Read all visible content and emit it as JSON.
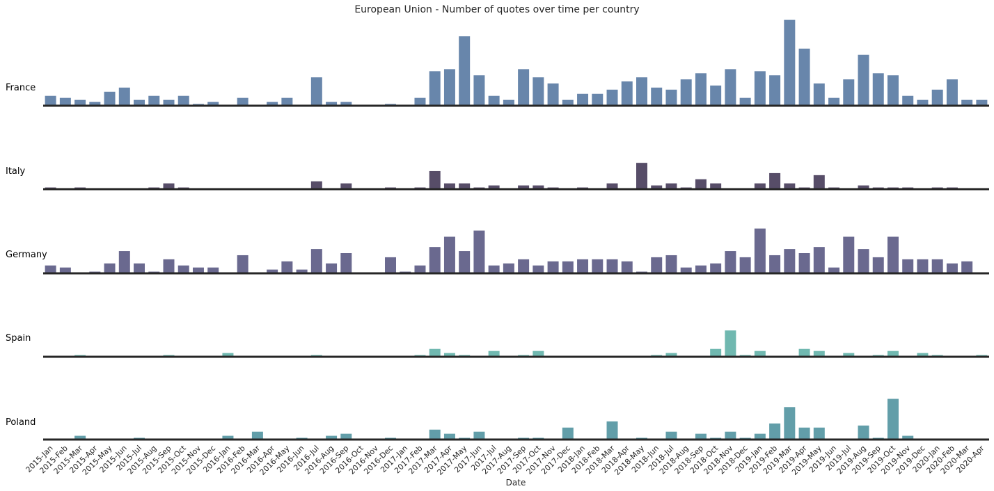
{
  "chart_data": {
    "type": "bar",
    "title": "European Union - Number of quotes over time per country",
    "xlabel": "Date",
    "grid": false,
    "categories": [
      "2015-Jan",
      "2015-Feb",
      "2015-Mar",
      "2015-Apr",
      "2015-May",
      "2015-Jun",
      "2015-Jul",
      "2015-Aug",
      "2015-Sep",
      "2015-Oct",
      "2015-Nov",
      "2015-Dec",
      "2016-Jan",
      "2016-Feb",
      "2016-Mar",
      "2016-Apr",
      "2016-May",
      "2016-Jun",
      "2016-Jul",
      "2016-Aug",
      "2016-Sep",
      "2016-Oct",
      "2016-Nov",
      "2016-Dec",
      "2017-Jan",
      "2017-Feb",
      "2017-Mar",
      "2017-Apr",
      "2017-May",
      "2017-Jun",
      "2017-Jul",
      "2017-Aug",
      "2017-Sep",
      "2017-Oct",
      "2017-Nov",
      "2017-Dec",
      "2018-Jan",
      "2018-Feb",
      "2018-Mar",
      "2018-Apr",
      "2018-May",
      "2018-Jun",
      "2018-Jul",
      "2018-Aug",
      "2018-Sep",
      "2018-Oct",
      "2018-Nov",
      "2018-Dec",
      "2019-Jan",
      "2019-Feb",
      "2019-Mar",
      "2019-Apr",
      "2019-May",
      "2019-Jun",
      "2019-Jul",
      "2019-Aug",
      "2019-Sep",
      "2019-Oct",
      "2019-Nov",
      "2019-Dec",
      "2020-Jan",
      "2020-Feb",
      "2020-Mar",
      "2020-Apr"
    ],
    "series": [
      {
        "name": "France",
        "color": "#6886ab",
        "values": [
          5,
          4,
          3,
          2,
          7,
          9,
          3,
          5,
          3,
          5,
          1,
          2,
          0,
          4,
          0,
          2,
          4,
          0,
          14,
          2,
          2,
          0,
          0,
          1,
          0,
          4,
          17,
          18,
          34,
          15,
          5,
          3,
          18,
          14,
          11,
          3,
          6,
          6,
          8,
          12,
          14,
          9,
          8,
          13,
          16,
          10,
          18,
          4,
          17,
          15,
          42,
          28,
          11,
          4,
          13,
          25,
          16,
          15,
          5,
          3,
          8,
          13,
          3,
          3
        ]
      },
      {
        "name": "Italy",
        "color": "#574d68",
        "values": [
          1,
          0,
          1,
          0,
          0,
          0,
          0,
          1,
          3,
          1,
          0,
          0,
          0,
          0,
          0,
          0,
          0,
          0,
          4,
          0,
          3,
          0,
          0,
          1,
          0,
          1,
          9,
          3,
          3,
          1,
          2,
          0,
          2,
          2,
          1,
          0,
          1,
          0,
          3,
          0,
          13,
          2,
          3,
          1,
          5,
          3,
          0,
          0,
          3,
          8,
          3,
          1,
          7,
          1,
          0,
          2,
          1,
          1,
          1,
          0,
          1,
          1,
          0,
          0
        ]
      },
      {
        "name": "Germany",
        "color": "#6a698f",
        "values": [
          4,
          3,
          0,
          1,
          5,
          11,
          5,
          1,
          7,
          4,
          3,
          3,
          0,
          9,
          0,
          2,
          6,
          2,
          12,
          5,
          10,
          0,
          0,
          8,
          1,
          4,
          13,
          18,
          11,
          21,
          4,
          5,
          7,
          4,
          6,
          6,
          7,
          7,
          7,
          6,
          1,
          8,
          9,
          3,
          4,
          5,
          11,
          8,
          22,
          9,
          12,
          10,
          13,
          3,
          18,
          12,
          8,
          18,
          7,
          7,
          7,
          5,
          6,
          0
        ]
      },
      {
        "name": "Spain",
        "color": "#70b8b0",
        "values": [
          0,
          0,
          1,
          0,
          0,
          0,
          0,
          0,
          1,
          0,
          0,
          0,
          2,
          0,
          0,
          0,
          0,
          0,
          1,
          0,
          0,
          0,
          0,
          0,
          0,
          1,
          4,
          2,
          1,
          0,
          3,
          0,
          1,
          3,
          0,
          0,
          0,
          0,
          0,
          0,
          0,
          1,
          2,
          0,
          0,
          4,
          13,
          1,
          3,
          0,
          0,
          4,
          3,
          0,
          2,
          0,
          1,
          3,
          0,
          2,
          1,
          0,
          0,
          1
        ]
      },
      {
        "name": "Poland",
        "color": "#629ea9",
        "values": [
          0,
          0,
          2,
          0,
          0,
          0,
          1,
          0,
          0,
          0,
          0,
          0,
          2,
          0,
          4,
          0,
          0,
          1,
          0,
          2,
          3,
          0,
          0,
          1,
          0,
          0,
          5,
          3,
          1,
          4,
          0,
          0,
          1,
          1,
          0,
          6,
          0,
          0,
          9,
          0,
          1,
          0,
          4,
          0,
          3,
          1,
          4,
          1,
          3,
          8,
          16,
          6,
          6,
          0,
          0,
          7,
          1,
          20,
          2,
          0,
          0,
          0,
          0,
          0
        ]
      }
    ]
  }
}
